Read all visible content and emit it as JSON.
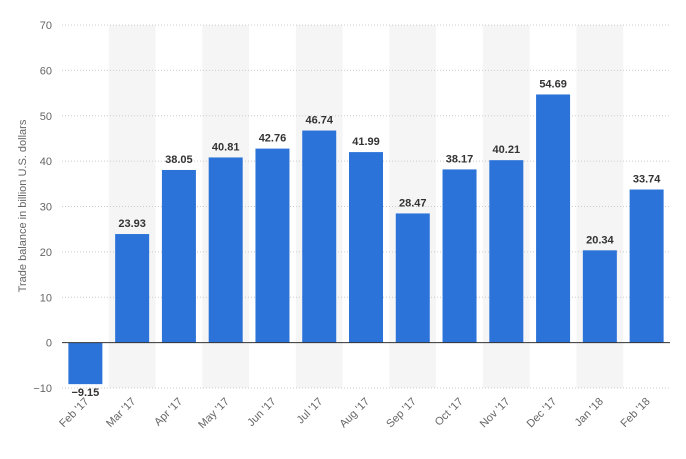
{
  "chart_data": {
    "type": "bar",
    "categories": [
      "Feb '17",
      "Mar '17",
      "Apr '17",
      "May '17",
      "Jun '17",
      "Jul '17",
      "Aug '17",
      "Sep '17",
      "Oct '17",
      "Nov '17",
      "Dec '17",
      "Jan '18",
      "Feb '18"
    ],
    "values": [
      -9.15,
      23.93,
      38.05,
      40.81,
      42.76,
      46.74,
      41.99,
      28.47,
      38.17,
      40.21,
      54.69,
      20.34,
      33.74
    ],
    "value_labels": [
      "-9.15",
      "23.93",
      "38.05",
      "40.81",
      "42.76",
      "46.74",
      "41.99",
      "28.47",
      "38.17",
      "40.21",
      "54.69",
      "20.34",
      "33.74"
    ],
    "title": "",
    "xlabel": "",
    "ylabel": "Trade balance in billion U.S. dollars",
    "ylim": [
      -10,
      70
    ],
    "yticks": [
      -10,
      0,
      10,
      20,
      30,
      40,
      50,
      60,
      70
    ],
    "grid": true,
    "alternating_column_shading": true,
    "legend": "none",
    "colors": {
      "bar": "#2b73d9",
      "band": "#f5f5f5",
      "grid": "#cccccc",
      "zero_line": "#333333",
      "tick_text": "#666666",
      "label_text": "#333333"
    }
  }
}
